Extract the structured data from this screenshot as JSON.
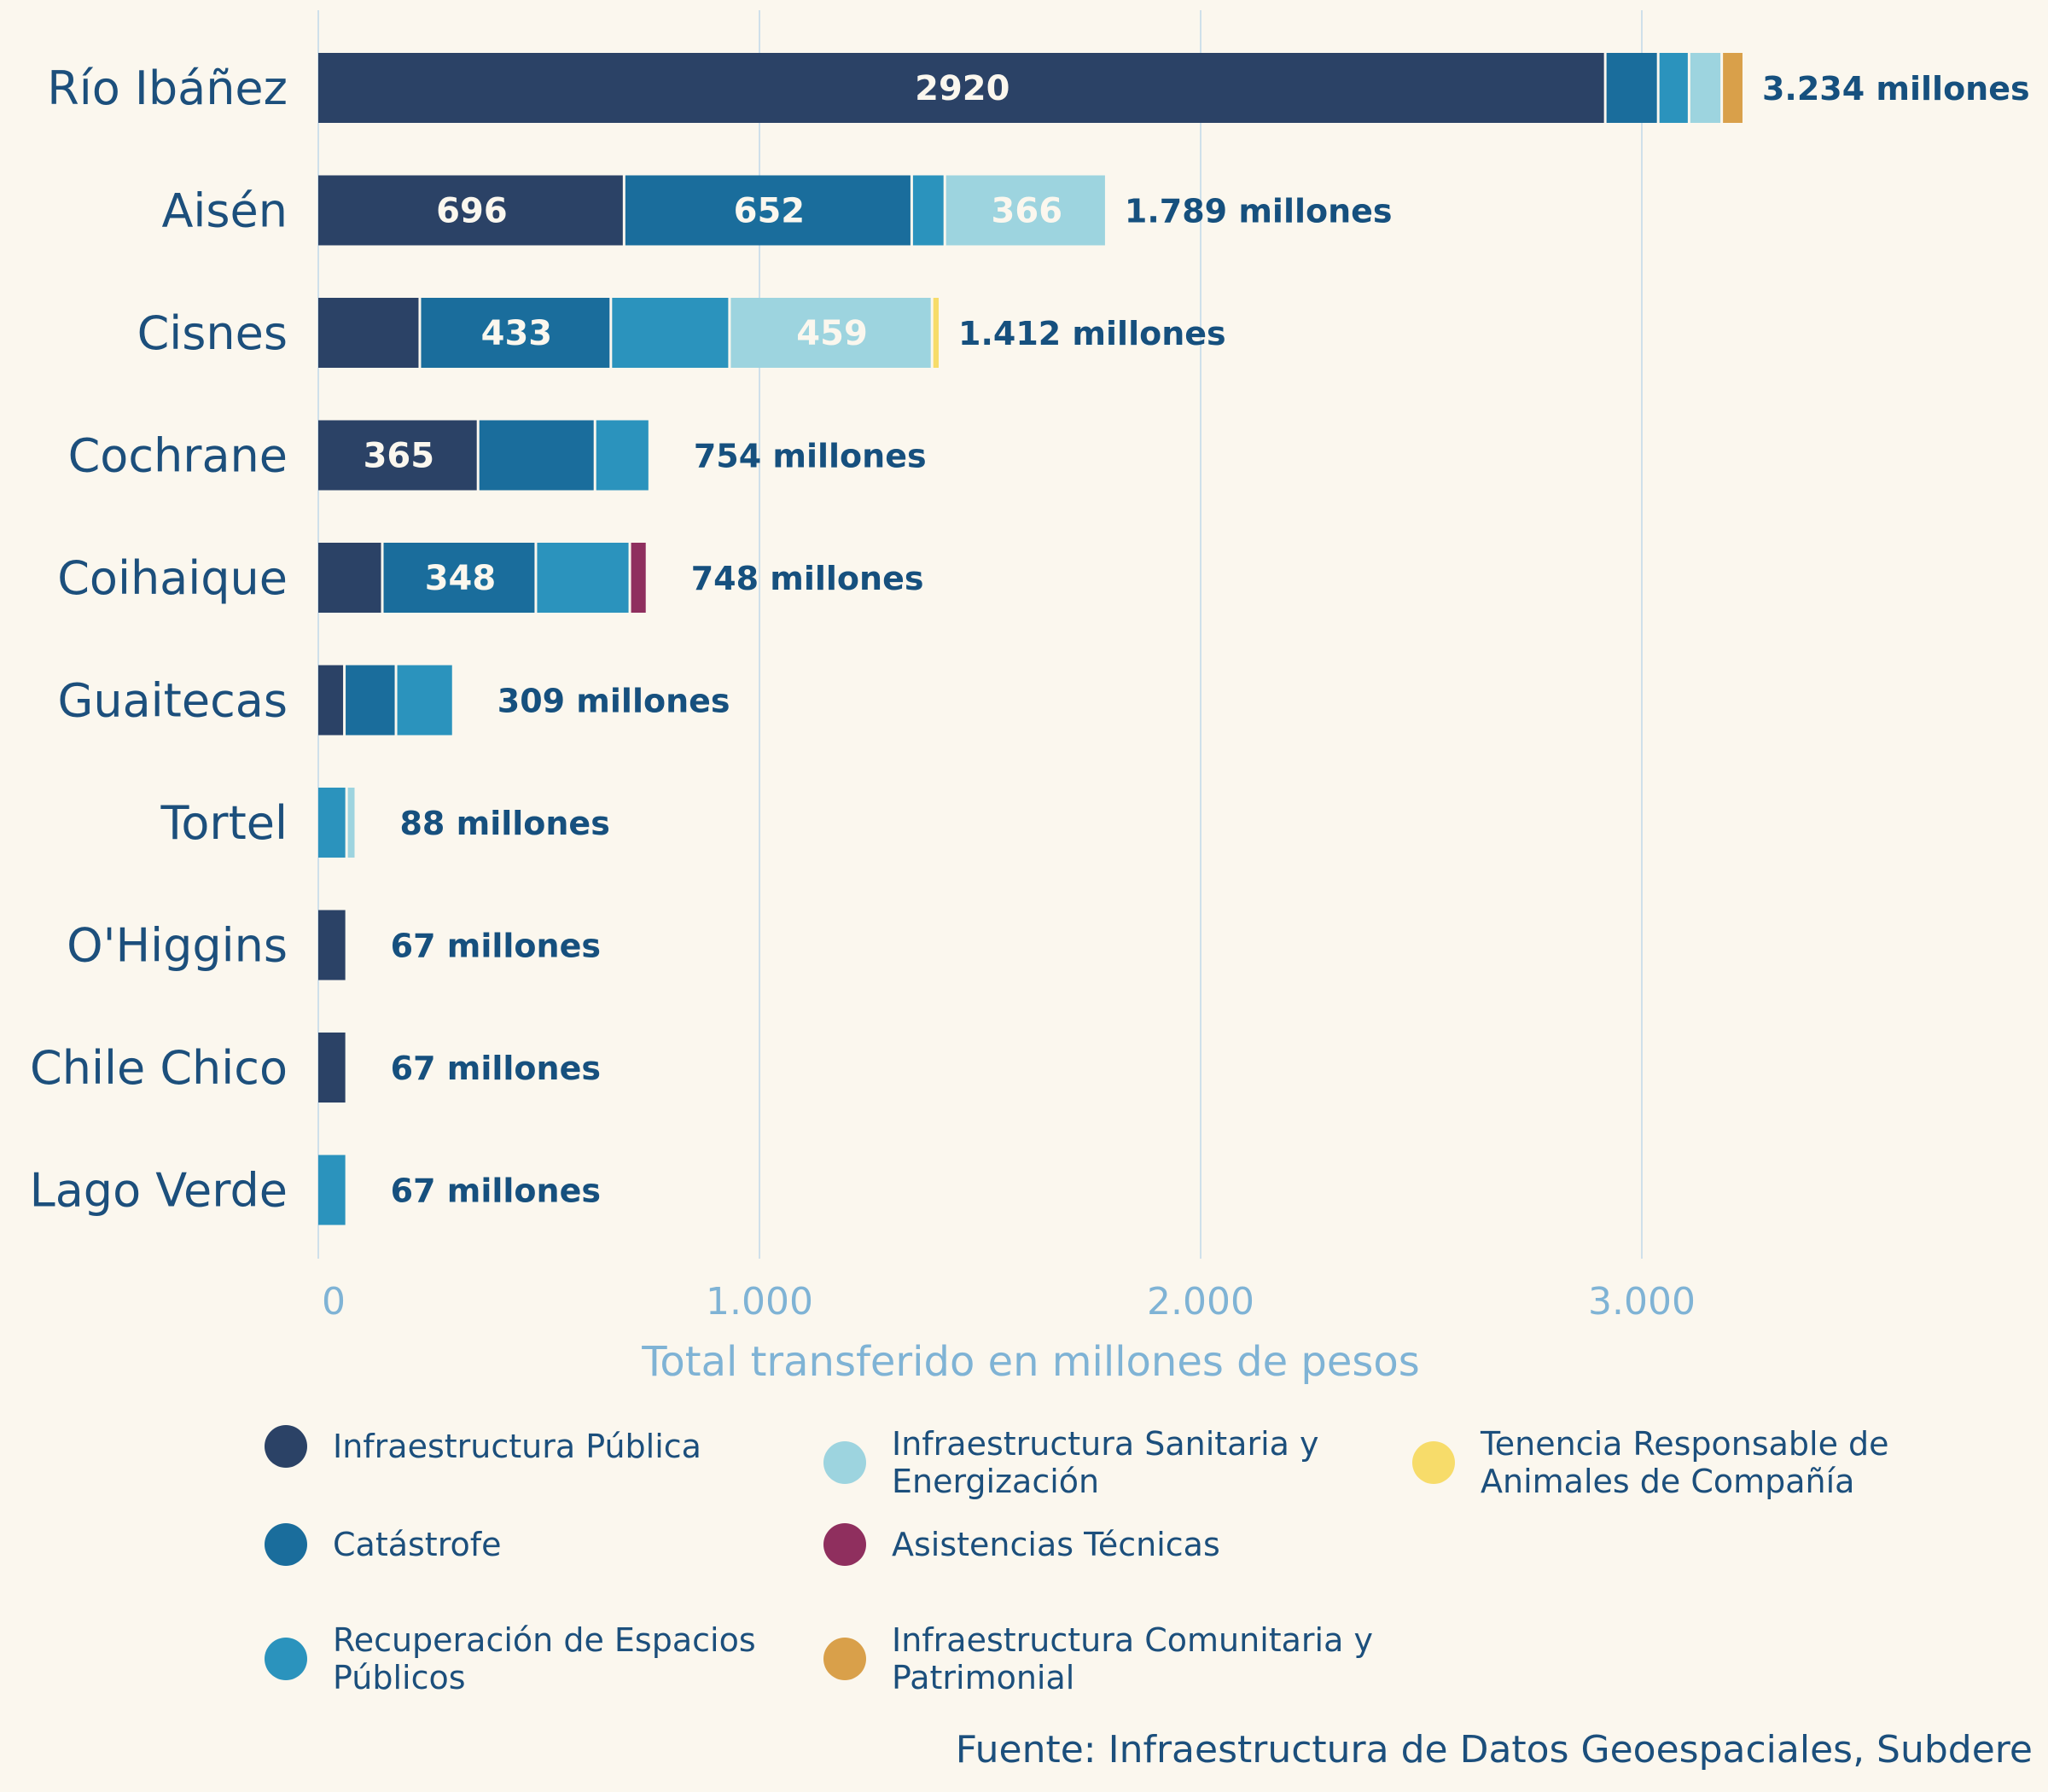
{
  "chart_data": {
    "type": "bar",
    "orientation": "horizontal",
    "stacked": true,
    "xlabel": "Total transferido en millones de pesos",
    "xlim": [
      0,
      3500
    ],
    "xticks": [
      0,
      1000,
      2000,
      3000
    ],
    "xtick_labels": [
      "0",
      "1.000",
      "2.000",
      "3.000"
    ],
    "grid": true,
    "legend_position": "bottom",
    "categories": [
      "Río Ibáñez",
      "Aisén",
      "Cisnes",
      "Cochrane",
      "Coihaique",
      "Guaitecas",
      "Tortel",
      "O'Higgins",
      "Chile Chico",
      "Lago Verde"
    ],
    "totals": [
      3234,
      1789,
      1412,
      754,
      748,
      309,
      88,
      67,
      67,
      67
    ],
    "total_labels": [
      "3.234 millones",
      "1.789 millones",
      "1.412 millones",
      "754 millones",
      "748 millones",
      "309 millones",
      "88 millones",
      "67 millones",
      "67 millones",
      "67 millones"
    ],
    "series": [
      {
        "name": "Infraestructura Pública",
        "color": "#2b4266",
        "values": [
          2920,
          696,
          233,
          365,
          148,
          62,
          0,
          67,
          67,
          0
        ]
      },
      {
        "name": "Catástrofe",
        "color": "#1a6d9c",
        "values": [
          120,
          652,
          433,
          265,
          348,
          117,
          0,
          0,
          0,
          0
        ]
      },
      {
        "name": "Recuperación de Espacios Públicos",
        "color": "#2b93bd",
        "values": [
          70,
          75,
          269,
          124,
          213,
          130,
          67,
          0,
          0,
          67
        ]
      },
      {
        "name": "Infraestructura Sanitaria y Energización",
        "color": "#9dd4df",
        "values": [
          74,
          366,
          459,
          0,
          0,
          0,
          21,
          0,
          0,
          0
        ]
      },
      {
        "name": "Asistencias Técnicas",
        "color": "#8f2f5e",
        "values": [
          0,
          0,
          0,
          0,
          39,
          0,
          0,
          0,
          0,
          0
        ]
      },
      {
        "name": "Infraestructura Comunitaria y Patrimonial",
        "color": "#d9a04a",
        "values": [
          50,
          0,
          0,
          0,
          0,
          0,
          0,
          0,
          0,
          0
        ]
      },
      {
        "name": "Tenencia Responsable de Animales de Compañía",
        "color": "#f7dc6a",
        "values": [
          0,
          0,
          18,
          0,
          0,
          0,
          0,
          0,
          0,
          0
        ]
      }
    ],
    "segment_labels": [
      {
        "category": "Río Ibáñez",
        "series": 0,
        "text": "2920"
      },
      {
        "category": "Aisén",
        "series": 0,
        "text": "696"
      },
      {
        "category": "Aisén",
        "series": 1,
        "text": "652"
      },
      {
        "category": "Aisén",
        "series": 3,
        "text": "366"
      },
      {
        "category": "Cisnes",
        "series": 1,
        "text": "433"
      },
      {
        "category": "Cisnes",
        "series": 3,
        "text": "459"
      },
      {
        "category": "Cochrane",
        "series": 0,
        "text": "365"
      },
      {
        "category": "Coihaique",
        "series": 1,
        "text": "348"
      }
    ]
  },
  "legend": [
    {
      "label": "Infraestructura Pública",
      "color": "#2b4266"
    },
    {
      "label": "Catástrofe",
      "color": "#1a6d9c"
    },
    {
      "label": "Recuperación de Espacios Públicos",
      "color": "#2b93bd"
    },
    {
      "label": "Infraestructura Sanitaria y Energización",
      "color": "#9dd4df"
    },
    {
      "label": "Asistencias Técnicas",
      "color": "#8f2f5e"
    },
    {
      "label": "Infraestructura Comunitaria y Patrimonial",
      "color": "#d9a04a"
    },
    {
      "label": "Tenencia Responsable de Animales de Compañía",
      "color": "#f7dc6a"
    }
  ],
  "source": "Fuente: Infraestructura de Datos Geoespaciales, Subdere"
}
